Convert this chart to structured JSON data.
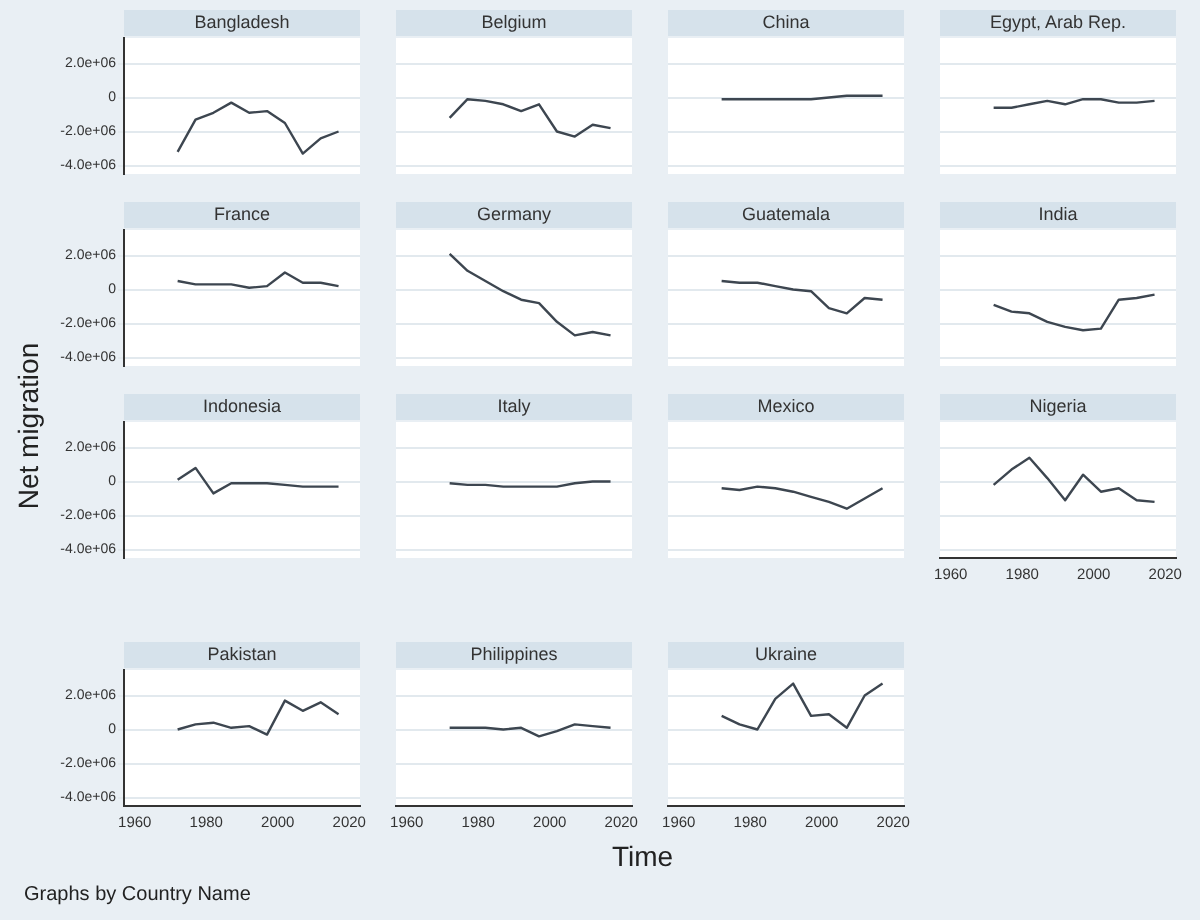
{
  "chart_data": [
    {
      "type": "line",
      "title": "Bangladesh",
      "tick_labels": "y",
      "grid": "y",
      "x": [
        1972,
        1977,
        1982,
        1987,
        1992,
        1997,
        2002,
        2007,
        2012,
        2017
      ],
      "series": [
        {
          "color": "#3d4650",
          "values": [
            -3200000,
            -1300000,
            -900000,
            -300000,
            -900000,
            -800000,
            -1500000,
            -3300000,
            -2400000,
            -2000000
          ]
        }
      ],
      "xlim": [
        1957,
        2023
      ],
      "ylim": [
        -4500000,
        3500000
      ],
      "xticks": [
        1960,
        1980,
        2000,
        2020
      ],
      "yticks": [
        {
          "value": -4000000,
          "label": "-4.0e+06"
        },
        {
          "value": -2000000,
          "label": "-2.0e+06"
        },
        0,
        {
          "value": 2000000,
          "label": "2.0e+06"
        }
      ]
    },
    {
      "type": "line",
      "title": "Belgium",
      "tick_labels": false,
      "grid": "y",
      "x": [
        1972,
        1977,
        1982,
        1987,
        1992,
        1997,
        2002,
        2007,
        2012,
        2017
      ],
      "series": [
        {
          "color": "#3d4650",
          "values": [
            -1200000,
            -100000,
            -200000,
            -400000,
            -800000,
            -400000,
            -2000000,
            -2300000,
            -1600000,
            -1800000
          ]
        }
      ],
      "xlim": [
        1957,
        2023
      ],
      "ylim": [
        -4500000,
        3500000
      ],
      "xticks": [
        1960,
        1980,
        2000,
        2020
      ],
      "yticks": [
        -4000000,
        -2000000,
        0,
        2000000
      ]
    },
    {
      "type": "line",
      "title": "China",
      "tick_labels": false,
      "grid": "y",
      "x": [
        1972,
        1977,
        1982,
        1987,
        1992,
        1997,
        2002,
        2007,
        2012,
        2017
      ],
      "series": [
        {
          "color": "#3d4650",
          "values": [
            -100000,
            -100000,
            -100000,
            -100000,
            -100000,
            -100000,
            0,
            100000,
            100000,
            100000
          ]
        }
      ],
      "xlim": [
        1957,
        2023
      ],
      "ylim": [
        -4500000,
        3500000
      ],
      "xticks": [
        1960,
        1980,
        2000,
        2020
      ],
      "yticks": [
        -4000000,
        -2000000,
        0,
        2000000
      ]
    },
    {
      "type": "line",
      "title": "Egypt, Arab Rep.",
      "tick_labels": false,
      "grid": "y",
      "x": [
        1972,
        1977,
        1982,
        1987,
        1992,
        1997,
        2002,
        2007,
        2012,
        2017
      ],
      "series": [
        {
          "color": "#3d4650",
          "values": [
            -600000,
            -600000,
            -400000,
            -200000,
            -400000,
            -100000,
            -100000,
            -300000,
            -300000,
            -200000
          ]
        }
      ],
      "xlim": [
        1957,
        2023
      ],
      "ylim": [
        -4500000,
        3500000
      ],
      "xticks": [
        1960,
        1980,
        2000,
        2020
      ],
      "yticks": [
        -4000000,
        -2000000,
        0,
        2000000
      ]
    },
    {
      "type": "line",
      "title": "France",
      "tick_labels": "y",
      "grid": "y",
      "x": [
        1972,
        1977,
        1982,
        1987,
        1992,
        1997,
        2002,
        2007,
        2012,
        2017
      ],
      "series": [
        {
          "color": "#3d4650",
          "values": [
            500000,
            300000,
            300000,
            300000,
            100000,
            200000,
            1000000,
            400000,
            400000,
            200000
          ]
        }
      ],
      "xlim": [
        1957,
        2023
      ],
      "ylim": [
        -4500000,
        3500000
      ],
      "xticks": [
        1960,
        1980,
        2000,
        2020
      ],
      "yticks": [
        {
          "value": -4000000,
          "label": "-4.0e+06"
        },
        {
          "value": -2000000,
          "label": "-2.0e+06"
        },
        0,
        {
          "value": 2000000,
          "label": "2.0e+06"
        }
      ]
    },
    {
      "type": "line",
      "title": "Germany",
      "tick_labels": false,
      "grid": "y",
      "x": [
        1972,
        1977,
        1982,
        1987,
        1992,
        1997,
        2002,
        2007,
        2012,
        2017
      ],
      "series": [
        {
          "color": "#3d4650",
          "values": [
            2100000,
            1100000,
            500000,
            -100000,
            -600000,
            -800000,
            -1900000,
            -2700000,
            -2500000,
            -2700000
          ]
        }
      ],
      "xlim": [
        1957,
        2023
      ],
      "ylim": [
        -4500000,
        3500000
      ],
      "xticks": [
        1960,
        1980,
        2000,
        2020
      ],
      "yticks": [
        -4000000,
        -2000000,
        0,
        2000000
      ]
    },
    {
      "type": "line",
      "title": "Guatemala",
      "tick_labels": false,
      "grid": "y",
      "x": [
        1972,
        1977,
        1982,
        1987,
        1992,
        1997,
        2002,
        2007,
        2012,
        2017
      ],
      "series": [
        {
          "color": "#3d4650",
          "values": [
            500000,
            400000,
            400000,
            200000,
            0,
            -100000,
            -1100000,
            -1400000,
            -500000,
            -600000
          ]
        }
      ],
      "xlim": [
        1957,
        2023
      ],
      "ylim": [
        -4500000,
        3500000
      ],
      "xticks": [
        1960,
        1980,
        2000,
        2020
      ],
      "yticks": [
        -4000000,
        -2000000,
        0,
        2000000
      ]
    },
    {
      "type": "line",
      "title": "India",
      "tick_labels": false,
      "grid": "y",
      "x": [
        1972,
        1977,
        1982,
        1987,
        1992,
        1997,
        2002,
        2007,
        2012,
        2017
      ],
      "series": [
        {
          "color": "#3d4650",
          "values": [
            -900000,
            -1300000,
            -1400000,
            -1900000,
            -2200000,
            -2400000,
            -2300000,
            -600000,
            -500000,
            -300000
          ]
        }
      ],
      "xlim": [
        1957,
        2023
      ],
      "ylim": [
        -4500000,
        3500000
      ],
      "xticks": [
        1960,
        1980,
        2000,
        2020
      ],
      "yticks": [
        -4000000,
        -2000000,
        0,
        2000000
      ]
    },
    {
      "type": "line",
      "title": "Indonesia",
      "ylabel": "Net migration",
      "tick_labels": "y",
      "grid": "y",
      "x": [
        1972,
        1977,
        1982,
        1987,
        1992,
        1997,
        2002,
        2007,
        2012,
        2017
      ],
      "series": [
        {
          "color": "#3d4650",
          "values": [
            100000,
            800000,
            -700000,
            -100000,
            -100000,
            -100000,
            -200000,
            -300000,
            -300000,
            -300000
          ]
        }
      ],
      "xlim": [
        1957,
        2023
      ],
      "ylim": [
        -4500000,
        3500000
      ],
      "xticks": [
        1960,
        1980,
        2000,
        2020
      ],
      "yticks": [
        {
          "value": -4000000,
          "label": "-4.0e+06"
        },
        {
          "value": -2000000,
          "label": "-2.0e+06"
        },
        0,
        {
          "value": 2000000,
          "label": "2.0e+06"
        }
      ]
    },
    {
      "type": "line",
      "title": "Italy",
      "tick_labels": false,
      "grid": "y",
      "x": [
        1972,
        1977,
        1982,
        1987,
        1992,
        1997,
        2002,
        2007,
        2012,
        2017
      ],
      "series": [
        {
          "color": "#3d4650",
          "values": [
            -100000,
            -200000,
            -200000,
            -300000,
            -300000,
            -300000,
            -300000,
            -100000,
            0,
            0
          ]
        }
      ],
      "xlim": [
        1957,
        2023
      ],
      "ylim": [
        -4500000,
        3500000
      ],
      "xticks": [
        1960,
        1980,
        2000,
        2020
      ],
      "yticks": [
        -4000000,
        -2000000,
        0,
        2000000
      ]
    },
    {
      "type": "line",
      "title": "Mexico",
      "tick_labels": false,
      "grid": "y",
      "x": [
        1972,
        1977,
        1982,
        1987,
        1992,
        1997,
        2002,
        2007,
        2012,
        2017
      ],
      "series": [
        {
          "color": "#3d4650",
          "values": [
            -400000,
            -500000,
            -300000,
            -400000,
            -600000,
            -900000,
            -1200000,
            -1600000,
            -1000000,
            -400000
          ]
        }
      ],
      "xlim": [
        1957,
        2023
      ],
      "ylim": [
        -4500000,
        3500000
      ],
      "xticks": [
        1960,
        1980,
        2000,
        2020
      ],
      "yticks": [
        -4000000,
        -2000000,
        0,
        2000000
      ]
    },
    {
      "type": "line",
      "title": "Nigeria",
      "tick_labels": "x",
      "grid": "y",
      "x": [
        1972,
        1977,
        1982,
        1987,
        1992,
        1997,
        2002,
        2007,
        2012,
        2017
      ],
      "series": [
        {
          "color": "#3d4650",
          "values": [
            -200000,
            700000,
            1400000,
            200000,
            -1100000,
            400000,
            -600000,
            -400000,
            -1100000,
            -1200000
          ]
        }
      ],
      "xlim": [
        1957,
        2023
      ],
      "ylim": [
        -4500000,
        3500000
      ],
      "xticks": [
        1960,
        1980,
        2000,
        2020
      ],
      "yticks": [
        -4000000,
        -2000000,
        0,
        2000000
      ]
    },
    {
      "type": "line",
      "title": "Pakistan",
      "annotations": [
        "Graphs by Country Name"
      ],
      "grid": "y",
      "x": [
        1972,
        1977,
        1982,
        1987,
        1992,
        1997,
        2002,
        2007,
        2012,
        2017
      ],
      "series": [
        {
          "color": "#3d4650",
          "values": [
            0,
            300000,
            400000,
            100000,
            200000,
            -300000,
            1700000,
            1100000,
            1600000,
            900000
          ]
        }
      ],
      "xlim": [
        1957,
        2023
      ],
      "ylim": [
        -4500000,
        3500000
      ],
      "xticks": [
        1960,
        1980,
        2000,
        2020
      ],
      "yticks": [
        {
          "value": -4000000,
          "label": "-4.0e+06"
        },
        {
          "value": -2000000,
          "label": "-2.0e+06"
        },
        0,
        {
          "value": 2000000,
          "label": "2.0e+06"
        }
      ]
    },
    {
      "type": "line",
      "title": "Philippines",
      "xlabel": "Time",
      "tick_labels": "x",
      "grid": "y",
      "x": [
        1972,
        1977,
        1982,
        1987,
        1992,
        1997,
        2002,
        2007,
        2012,
        2017
      ],
      "series": [
        {
          "color": "#3d4650",
          "values": [
            100000,
            100000,
            100000,
            0,
            100000,
            -400000,
            -100000,
            300000,
            200000,
            100000
          ]
        }
      ],
      "xlim": [
        1957,
        2023
      ],
      "ylim": [
        -4500000,
        3500000
      ],
      "xticks": [
        1960,
        1980,
        2000,
        2020
      ],
      "yticks": [
        -4000000,
        -2000000,
        0,
        2000000
      ]
    },
    {
      "type": "line",
      "title": "Ukraine",
      "tick_labels": "x",
      "grid": "y",
      "x": [
        1972,
        1977,
        1982,
        1987,
        1992,
        1997,
        2002,
        2007,
        2012,
        2017
      ],
      "series": [
        {
          "color": "#3d4650",
          "values": [
            800000,
            300000,
            0,
            1800000,
            2700000,
            800000,
            900000,
            100000,
            2000000,
            2700000
          ]
        }
      ],
      "xlim": [
        1957,
        2023
      ],
      "ylim": [
        -4500000,
        3500000
      ],
      "xticks": [
        1960,
        1980,
        2000,
        2020
      ],
      "yticks": [
        -4000000,
        -2000000,
        0,
        2000000
      ]
    }
  ]
}
